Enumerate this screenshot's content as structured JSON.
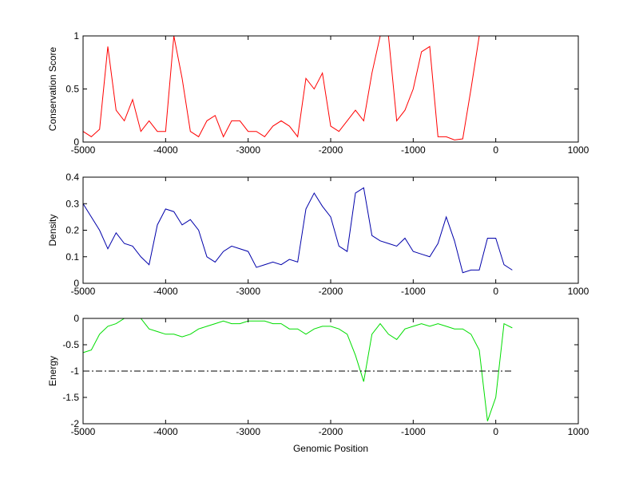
{
  "chart_data": [
    {
      "type": "line",
      "ylabel": "Conservation Score",
      "color": "#ff0000",
      "x": [
        -5000,
        -4900,
        -4800,
        -4700,
        -4600,
        -4500,
        -4400,
        -4300,
        -4200,
        -4100,
        -4000,
        -3900,
        -3800,
        -3700,
        -3600,
        -3500,
        -3400,
        -3300,
        -3200,
        -3100,
        -3000,
        -2900,
        -2800,
        -2700,
        -2600,
        -2500,
        -2400,
        -2300,
        -2200,
        -2100,
        -2000,
        -1900,
        -1800,
        -1700,
        -1600,
        -1500,
        -1400,
        -1300,
        -1200,
        -1100,
        -1000,
        -900,
        -800,
        -700,
        -600,
        -500,
        -400,
        -300,
        -200,
        -100,
        0,
        100,
        200
      ],
      "values": [
        0.1,
        0.05,
        0.12,
        0.9,
        0.3,
        0.2,
        0.4,
        0.1,
        0.2,
        0.1,
        0.1,
        1,
        0.6,
        0.1,
        0.05,
        0.2,
        0.25,
        0.05,
        0.2,
        0.2,
        0.1,
        0.1,
        0.05,
        0.15,
        0.2,
        0.15,
        0.05,
        0.6,
        0.5,
        0.65,
        0.15,
        0.1,
        0.2,
        0.3,
        0.2,
        0.65,
        1,
        1,
        0.2,
        0.3,
        0.5,
        0.85,
        0.9,
        0.05,
        0.05,
        0.02,
        0.03,
        0.5,
        1,
        1,
        1,
        1,
        1
      ],
      "xlim": [
        -5000,
        1000
      ],
      "xticks": [
        -5000,
        -4000,
        -3000,
        -2000,
        -1000,
        0,
        1000
      ],
      "ylim": [
        0,
        1
      ],
      "yticks": [
        0,
        0.5,
        1
      ]
    },
    {
      "type": "line",
      "ylabel": "Density",
      "color": "#0000aa",
      "x": [
        -5000,
        -4900,
        -4800,
        -4700,
        -4600,
        -4500,
        -4400,
        -4300,
        -4200,
        -4100,
        -4000,
        -3900,
        -3800,
        -3700,
        -3600,
        -3500,
        -3400,
        -3300,
        -3200,
        -3100,
        -3000,
        -2900,
        -2800,
        -2700,
        -2600,
        -2500,
        -2400,
        -2300,
        -2200,
        -2100,
        -2000,
        -1900,
        -1800,
        -1700,
        -1600,
        -1500,
        -1400,
        -1300,
        -1200,
        -1100,
        -1000,
        -900,
        -800,
        -700,
        -600,
        -500,
        -400,
        -300,
        -200,
        -100,
        0,
        100,
        200
      ],
      "values": [
        0.3,
        0.25,
        0.2,
        0.13,
        0.19,
        0.15,
        0.14,
        0.1,
        0.07,
        0.22,
        0.28,
        0.27,
        0.22,
        0.24,
        0.2,
        0.1,
        0.08,
        0.12,
        0.14,
        0.13,
        0.12,
        0.06,
        0.07,
        0.08,
        0.07,
        0.09,
        0.08,
        0.28,
        0.34,
        0.29,
        0.25,
        0.14,
        0.12,
        0.34,
        0.36,
        0.18,
        0.16,
        0.15,
        0.14,
        0.17,
        0.12,
        0.11,
        0.1,
        0.15,
        0.25,
        0.16,
        0.04,
        0.05,
        0.05,
        0.17,
        0.17,
        0.07,
        0.05
      ],
      "xlim": [
        -5000,
        1000
      ],
      "xticks": [
        -5000,
        -4000,
        -3000,
        -2000,
        -1000,
        0,
        1000
      ],
      "ylim": [
        0,
        0.4
      ],
      "yticks": [
        0,
        0.1,
        0.2,
        0.3,
        0.4
      ]
    },
    {
      "type": "line",
      "ylabel": "Energy",
      "xlabel": "Genomic Position",
      "color": "#00dd00",
      "x": [
        -5000,
        -4900,
        -4800,
        -4700,
        -4600,
        -4500,
        -4400,
        -4300,
        -4200,
        -4100,
        -4000,
        -3900,
        -3800,
        -3700,
        -3600,
        -3500,
        -3400,
        -3300,
        -3200,
        -3100,
        -3000,
        -2900,
        -2800,
        -2700,
        -2600,
        -2500,
        -2400,
        -2300,
        -2200,
        -2100,
        -2000,
        -1900,
        -1800,
        -1700,
        -1600,
        -1500,
        -1400,
        -1300,
        -1200,
        -1100,
        -1000,
        -900,
        -800,
        -700,
        -600,
        -500,
        -400,
        -300,
        -200,
        -100,
        0,
        100,
        200
      ],
      "values": [
        -0.65,
        -0.6,
        -0.3,
        -0.15,
        -0.1,
        0,
        0,
        0,
        -0.2,
        -0.25,
        -0.3,
        -0.3,
        -0.35,
        -0.3,
        -0.2,
        -0.15,
        -0.1,
        -0.05,
        -0.1,
        -0.1,
        -0.05,
        -0.05,
        -0.05,
        -0.1,
        -0.1,
        -0.2,
        -0.2,
        -0.3,
        -0.2,
        -0.15,
        -0.15,
        -0.2,
        -0.3,
        -0.7,
        -1.2,
        -0.3,
        -0.1,
        -0.3,
        -0.4,
        -0.2,
        -0.15,
        -0.1,
        -0.15,
        -0.1,
        -0.15,
        -0.2,
        -0.2,
        -0.3,
        -0.6,
        -1.95,
        -1.5,
        -0.1,
        -0.18
      ],
      "reference_line": {
        "y": -1,
        "x": [
          -5000,
          200
        ]
      },
      "xlim": [
        -5000,
        1000
      ],
      "xticks": [
        -5000,
        -4000,
        -3000,
        -2000,
        -1000,
        0,
        1000
      ],
      "ylim": [
        -2,
        0
      ],
      "yticks": [
        -2,
        -1.5,
        -1,
        -0.5,
        0
      ]
    }
  ]
}
